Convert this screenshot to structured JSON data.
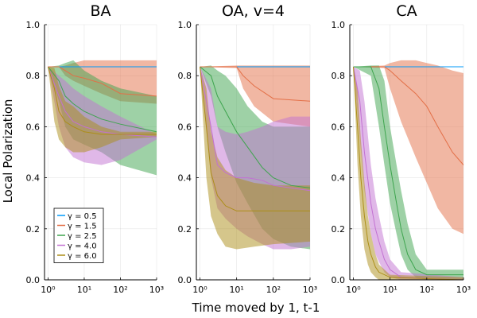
{
  "figure": {
    "ylabel": "Local Polarization",
    "xlabel": "Time moved by 1, t-1"
  },
  "legend": [
    {
      "label": "γ = 0.5",
      "color": "#009AFA"
    },
    {
      "label": "γ = 1.5",
      "color": "#E36F47"
    },
    {
      "label": "γ = 2.5",
      "color": "#3EA44E"
    },
    {
      "label": "γ = 4.0",
      "color": "#C271D2"
    },
    {
      "label": "γ = 6.0",
      "color": "#AC8E18"
    }
  ],
  "chart_data": [
    {
      "type": "line",
      "title": "BA",
      "xscale": "log",
      "xlim": [
        0.8,
        1000
      ],
      "ylim": [
        0,
        1
      ],
      "xticks": [
        1,
        10,
        100,
        1000
      ],
      "xticklabels": [
        "10⁰",
        "10¹",
        "10²",
        "10³"
      ],
      "yticks": [
        0,
        0.2,
        0.4,
        0.6,
        0.8,
        1.0
      ],
      "yticklabels": [
        "0.0",
        "0.2",
        "0.4",
        "0.6",
        "0.8",
        "1.0"
      ],
      "grid": true,
      "legend_position": "bottom-left",
      "series": [
        {
          "name": "γ = 0.5",
          "color": "#009AFA",
          "x": [
            1,
            1000
          ],
          "y": [
            0.835,
            0.835
          ],
          "lower": [
            0.835,
            0.835
          ],
          "upper": [
            0.835,
            0.835
          ]
        },
        {
          "name": "γ = 1.5",
          "color": "#E36F47",
          "x": [
            1,
            2,
            3,
            5,
            10,
            30,
            100,
            1000
          ],
          "y": [
            0.835,
            0.835,
            0.82,
            0.8,
            0.79,
            0.77,
            0.73,
            0.72
          ],
          "lower": [
            0.835,
            0.835,
            0.8,
            0.78,
            0.76,
            0.73,
            0.7,
            0.69
          ],
          "upper": [
            0.835,
            0.835,
            0.84,
            0.85,
            0.86,
            0.86,
            0.86,
            0.86
          ]
        },
        {
          "name": "γ = 2.5",
          "color": "#3EA44E",
          "x": [
            1,
            2,
            3,
            5,
            10,
            30,
            100,
            1000
          ],
          "y": [
            0.835,
            0.78,
            0.72,
            0.69,
            0.66,
            0.63,
            0.61,
            0.58
          ],
          "lower": [
            0.835,
            0.7,
            0.6,
            0.55,
            0.53,
            0.5,
            0.45,
            0.41
          ],
          "upper": [
            0.835,
            0.84,
            0.85,
            0.86,
            0.82,
            0.78,
            0.75,
            0.72
          ]
        },
        {
          "name": "γ = 4.0",
          "color": "#C271D2",
          "x": [
            1,
            2,
            3,
            5,
            10,
            30,
            100,
            1000
          ],
          "y": [
            0.835,
            0.72,
            0.66,
            0.62,
            0.6,
            0.58,
            0.57,
            0.56
          ],
          "lower": [
            0.835,
            0.6,
            0.52,
            0.48,
            0.46,
            0.45,
            0.47,
            0.55
          ],
          "upper": [
            0.835,
            0.8,
            0.78,
            0.75,
            0.72,
            0.68,
            0.64,
            0.57
          ]
        },
        {
          "name": "γ = 6.0",
          "color": "#AC8E18",
          "x": [
            1,
            1.5,
            2,
            3,
            5,
            10,
            30,
            100,
            1000
          ],
          "y": [
            0.835,
            0.75,
            0.66,
            0.62,
            0.6,
            0.58,
            0.57,
            0.57,
            0.57
          ],
          "lower": [
            0.835,
            0.62,
            0.55,
            0.52,
            0.5,
            0.5,
            0.52,
            0.55,
            0.56
          ],
          "upper": [
            0.835,
            0.83,
            0.76,
            0.7,
            0.68,
            0.64,
            0.6,
            0.58,
            0.58
          ]
        }
      ]
    },
    {
      "type": "line",
      "title": "OA, v=4",
      "xscale": "log",
      "xlim": [
        0.8,
        1000
      ],
      "ylim": [
        0,
        1
      ],
      "xticks": [
        1,
        10,
        100,
        1000
      ],
      "xticklabels": [
        "10⁰",
        "10¹",
        "10²",
        "10³"
      ],
      "yticks": [
        0,
        0.2,
        0.4,
        0.6,
        0.8,
        1.0
      ],
      "yticklabels": [
        "0.0",
        "0.2",
        "0.4",
        "0.6",
        "0.8",
        "1.0"
      ],
      "grid": true,
      "series": [
        {
          "name": "γ = 0.5",
          "color": "#009AFA",
          "x": [
            1,
            1000
          ],
          "y": [
            0.835,
            0.835
          ],
          "lower": [
            0.835,
            0.835
          ],
          "upper": [
            0.835,
            0.835
          ]
        },
        {
          "name": "γ = 1.5",
          "color": "#E36F47",
          "x": [
            1,
            10,
            15,
            30,
            100,
            1000
          ],
          "y": [
            0.835,
            0.835,
            0.8,
            0.76,
            0.71,
            0.7
          ],
          "lower": [
            0.835,
            0.83,
            0.75,
            0.68,
            0.62,
            0.6
          ],
          "upper": [
            0.835,
            0.84,
            0.84,
            0.84,
            0.84,
            0.84
          ]
        },
        {
          "name": "γ = 2.5",
          "color": "#3EA44E",
          "x": [
            1,
            2,
            3,
            5,
            10,
            20,
            50,
            100,
            300,
            1000
          ],
          "y": [
            0.835,
            0.8,
            0.72,
            0.66,
            0.58,
            0.52,
            0.44,
            0.4,
            0.37,
            0.36
          ],
          "lower": [
            0.835,
            0.72,
            0.6,
            0.5,
            0.38,
            0.3,
            0.2,
            0.16,
            0.13,
            0.12
          ],
          "upper": [
            0.835,
            0.84,
            0.82,
            0.8,
            0.75,
            0.68,
            0.62,
            0.6,
            0.6,
            0.6
          ]
        },
        {
          "name": "γ = 4.0",
          "color": "#C271D2",
          "x": [
            1,
            2,
            3,
            5,
            10,
            20,
            50,
            100,
            300,
            1000
          ],
          "y": [
            0.835,
            0.6,
            0.45,
            0.42,
            0.4,
            0.4,
            0.39,
            0.37,
            0.36,
            0.35
          ],
          "lower": [
            0.835,
            0.4,
            0.28,
            0.24,
            0.2,
            0.17,
            0.14,
            0.12,
            0.12,
            0.13
          ],
          "upper": [
            0.835,
            0.75,
            0.6,
            0.58,
            0.57,
            0.58,
            0.6,
            0.62,
            0.64,
            0.64
          ]
        },
        {
          "name": "γ = 6.0",
          "color": "#AC8E18",
          "x": [
            1,
            1.5,
            2,
            3,
            5,
            10,
            30,
            100,
            1000
          ],
          "y": [
            0.835,
            0.6,
            0.42,
            0.33,
            0.29,
            0.27,
            0.27,
            0.27,
            0.27
          ],
          "lower": [
            0.835,
            0.4,
            0.25,
            0.18,
            0.13,
            0.12,
            0.13,
            0.14,
            0.15
          ],
          "upper": [
            0.835,
            0.75,
            0.58,
            0.48,
            0.43,
            0.4,
            0.38,
            0.37,
            0.37
          ]
        }
      ]
    },
    {
      "type": "line",
      "title": "CA",
      "xscale": "log",
      "xlim": [
        0.8,
        1000
      ],
      "ylim": [
        0,
        1
      ],
      "xticks": [
        1,
        10,
        100,
        1000
      ],
      "xticklabels": [
        "10⁰",
        "10¹",
        "10²",
        "10³"
      ],
      "yticks": [
        0,
        0.2,
        0.4,
        0.6,
        0.8,
        1.0
      ],
      "yticklabels": [
        "0.0",
        "0.2",
        "0.4",
        "0.6",
        "0.8",
        "1.0"
      ],
      "grid": true,
      "series": [
        {
          "name": "γ = 0.5",
          "color": "#009AFA",
          "x": [
            1,
            1000
          ],
          "y": [
            0.835,
            0.835
          ],
          "lower": [
            0.835,
            0.835
          ],
          "upper": [
            0.835,
            0.835
          ]
        },
        {
          "name": "γ = 1.5",
          "color": "#E36F47",
          "x": [
            1,
            7,
            10,
            20,
            50,
            100,
            200,
            500,
            1000
          ],
          "y": [
            0.835,
            0.835,
            0.82,
            0.78,
            0.73,
            0.68,
            0.6,
            0.5,
            0.45
          ],
          "lower": [
            0.835,
            0.83,
            0.75,
            0.62,
            0.48,
            0.38,
            0.28,
            0.2,
            0.18
          ],
          "upper": [
            0.835,
            0.84,
            0.85,
            0.86,
            0.86,
            0.85,
            0.84,
            0.82,
            0.81
          ]
        },
        {
          "name": "γ = 2.5",
          "color": "#3EA44E",
          "x": [
            1,
            3,
            5,
            7,
            10,
            15,
            20,
            30,
            50,
            100,
            1000
          ],
          "y": [
            0.835,
            0.835,
            0.75,
            0.6,
            0.45,
            0.3,
            0.2,
            0.1,
            0.04,
            0.02,
            0.02
          ],
          "lower": [
            0.835,
            0.8,
            0.6,
            0.45,
            0.3,
            0.18,
            0.1,
            0.04,
            0.01,
            0.0,
            0.0
          ],
          "upper": [
            0.835,
            0.84,
            0.84,
            0.78,
            0.6,
            0.45,
            0.35,
            0.22,
            0.1,
            0.04,
            0.04
          ]
        },
        {
          "name": "γ = 4.0",
          "color": "#C271D2",
          "x": [
            1,
            1.5,
            2,
            3,
            4,
            5,
            7,
            10,
            20,
            1000
          ],
          "y": [
            0.835,
            0.7,
            0.5,
            0.3,
            0.2,
            0.15,
            0.08,
            0.04,
            0.01,
            0.0
          ],
          "lower": [
            0.835,
            0.55,
            0.35,
            0.18,
            0.1,
            0.07,
            0.03,
            0.01,
            0.0,
            0.0
          ],
          "upper": [
            0.835,
            0.82,
            0.7,
            0.45,
            0.32,
            0.25,
            0.15,
            0.08,
            0.03,
            0.01
          ]
        },
        {
          "name": "γ = 6.0",
          "color": "#AC8E18",
          "x": [
            1,
            1.3,
            1.6,
            2,
            2.5,
            3,
            4,
            5,
            10,
            1000
          ],
          "y": [
            0.835,
            0.6,
            0.4,
            0.25,
            0.15,
            0.1,
            0.05,
            0.03,
            0.01,
            0.0
          ],
          "lower": [
            0.835,
            0.45,
            0.25,
            0.12,
            0.06,
            0.03,
            0.01,
            0.0,
            0.0,
            0.0
          ],
          "upper": [
            0.835,
            0.75,
            0.55,
            0.38,
            0.25,
            0.18,
            0.1,
            0.06,
            0.02,
            0.01
          ]
        }
      ]
    }
  ]
}
